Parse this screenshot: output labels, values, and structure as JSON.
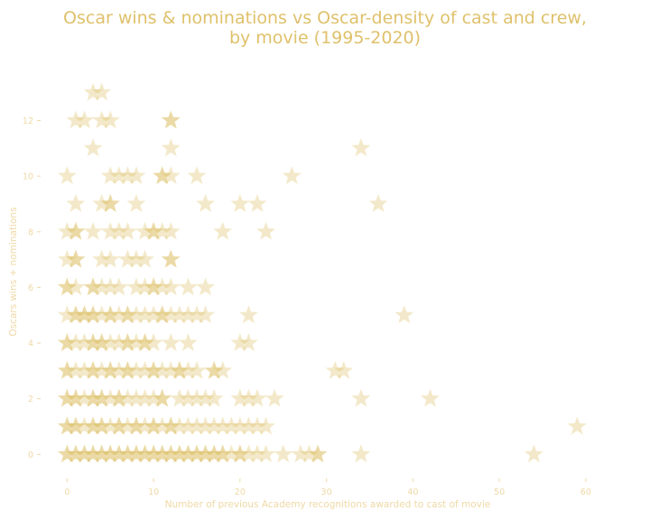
{
  "chart_data": {
    "type": "scatter",
    "title": "Oscar wins & nominations vs Oscar-density of cast and crew,",
    "subtitle": "by movie (1995-2020)",
    "xlabel": "Number of previous Academy recognitions awarded to cast of movie",
    "ylabel": "Oscars wins + nominations",
    "xlim": [
      -1.5,
      62
    ],
    "ylim": [
      -0.8,
      13.8
    ],
    "x_ticks": [
      "0",
      "10",
      "20",
      "30",
      "40",
      "50",
      "60"
    ],
    "y_ticks": [
      "0",
      "2",
      "4",
      "6",
      "8",
      "10",
      "12"
    ],
    "grid": false,
    "marker": "star",
    "marker_color": "#dcbd5e",
    "title_color": "#dfc16b",
    "label_color": "#efd9a6",
    "points": [
      [
        3,
        13
      ],
      [
        4,
        13
      ],
      [
        1,
        12
      ],
      [
        2,
        12
      ],
      [
        4,
        12
      ],
      [
        5,
        12
      ],
      [
        12,
        12
      ],
      [
        12,
        12
      ],
      [
        3,
        11
      ],
      [
        12,
        11
      ],
      [
        34,
        11
      ],
      [
        0,
        10
      ],
      [
        5,
        10
      ],
      [
        6,
        10
      ],
      [
        7,
        10
      ],
      [
        8,
        10
      ],
      [
        11,
        10
      ],
      [
        12,
        10
      ],
      [
        11,
        10
      ],
      [
        15,
        10
      ],
      [
        26,
        10
      ],
      [
        1,
        9
      ],
      [
        4,
        9
      ],
      [
        5,
        9
      ],
      [
        5,
        9
      ],
      [
        8,
        9
      ],
      [
        16,
        9
      ],
      [
        20,
        9
      ],
      [
        22,
        9
      ],
      [
        36,
        9
      ],
      [
        0,
        8
      ],
      [
        1,
        8
      ],
      [
        1,
        8
      ],
      [
        3,
        8
      ],
      [
        5,
        8
      ],
      [
        6,
        8
      ],
      [
        7,
        8
      ],
      [
        9,
        8
      ],
      [
        10,
        8
      ],
      [
        10,
        8
      ],
      [
        11,
        8
      ],
      [
        12,
        8
      ],
      [
        18,
        8
      ],
      [
        23,
        8
      ],
      [
        0,
        7
      ],
      [
        1,
        7
      ],
      [
        1,
        7
      ],
      [
        4,
        7
      ],
      [
        5,
        7
      ],
      [
        7,
        7
      ],
      [
        8,
        7
      ],
      [
        9,
        7
      ],
      [
        12,
        7
      ],
      [
        12,
        7
      ],
      [
        0,
        6
      ],
      [
        0,
        6
      ],
      [
        1,
        6
      ],
      [
        3,
        6
      ],
      [
        3,
        6
      ],
      [
        4,
        6
      ],
      [
        5,
        6
      ],
      [
        6,
        6
      ],
      [
        8,
        6
      ],
      [
        9,
        6
      ],
      [
        10,
        6
      ],
      [
        10,
        6
      ],
      [
        11,
        6
      ],
      [
        12,
        6
      ],
      [
        14,
        6
      ],
      [
        16,
        6
      ],
      [
        0,
        5
      ],
      [
        1,
        5
      ],
      [
        1,
        5
      ],
      [
        2,
        5
      ],
      [
        2,
        5
      ],
      [
        3,
        5
      ],
      [
        3,
        5
      ],
      [
        4,
        5
      ],
      [
        5,
        5
      ],
      [
        5,
        5
      ],
      [
        6,
        5
      ],
      [
        7,
        5
      ],
      [
        7,
        5
      ],
      [
        8,
        5
      ],
      [
        9,
        5
      ],
      [
        10,
        5
      ],
      [
        11,
        5
      ],
      [
        11,
        5
      ],
      [
        12,
        5
      ],
      [
        13,
        5
      ],
      [
        14,
        5
      ],
      [
        15,
        5
      ],
      [
        16,
        5
      ],
      [
        21,
        5
      ],
      [
        39,
        5
      ],
      [
        0,
        4
      ],
      [
        0,
        4
      ],
      [
        1,
        4
      ],
      [
        2,
        4
      ],
      [
        3,
        4
      ],
      [
        3,
        4
      ],
      [
        4,
        4
      ],
      [
        4,
        4
      ],
      [
        5,
        4
      ],
      [
        6,
        4
      ],
      [
        7,
        4
      ],
      [
        7,
        4
      ],
      [
        8,
        4
      ],
      [
        9,
        4
      ],
      [
        9,
        4
      ],
      [
        10,
        4
      ],
      [
        12,
        4
      ],
      [
        14,
        4
      ],
      [
        20,
        4
      ],
      [
        21,
        4
      ],
      [
        0,
        3
      ],
      [
        0,
        3
      ],
      [
        1,
        3
      ],
      [
        2,
        3
      ],
      [
        3,
        3
      ],
      [
        3,
        3
      ],
      [
        4,
        3
      ],
      [
        5,
        3
      ],
      [
        5,
        3
      ],
      [
        6,
        3
      ],
      [
        7,
        3
      ],
      [
        7,
        3
      ],
      [
        8,
        3
      ],
      [
        9,
        3
      ],
      [
        10,
        3
      ],
      [
        10,
        3
      ],
      [
        11,
        3
      ],
      [
        12,
        3
      ],
      [
        13,
        3
      ],
      [
        13,
        3
      ],
      [
        14,
        3
      ],
      [
        15,
        3
      ],
      [
        17,
        3
      ],
      [
        17,
        3
      ],
      [
        18,
        3
      ],
      [
        31,
        3
      ],
      [
        32,
        3
      ],
      [
        0,
        2
      ],
      [
        0,
        2
      ],
      [
        1,
        2
      ],
      [
        1,
        2
      ],
      [
        2,
        2
      ],
      [
        3,
        2
      ],
      [
        3,
        2
      ],
      [
        4,
        2
      ],
      [
        4,
        2
      ],
      [
        5,
        2
      ],
      [
        6,
        2
      ],
      [
        6,
        2
      ],
      [
        7,
        2
      ],
      [
        8,
        2
      ],
      [
        9,
        2
      ],
      [
        10,
        2
      ],
      [
        11,
        2
      ],
      [
        11,
        2
      ],
      [
        13,
        2
      ],
      [
        14,
        2
      ],
      [
        15,
        2
      ],
      [
        16,
        2
      ],
      [
        17,
        2
      ],
      [
        20,
        2
      ],
      [
        21,
        2
      ],
      [
        22,
        2
      ],
      [
        24,
        2
      ],
      [
        34,
        2
      ],
      [
        42,
        2
      ],
      [
        0,
        1
      ],
      [
        0,
        1
      ],
      [
        1,
        1
      ],
      [
        1,
        1
      ],
      [
        2,
        1
      ],
      [
        3,
        1
      ],
      [
        3,
        1
      ],
      [
        4,
        1
      ],
      [
        4,
        1
      ],
      [
        5,
        1
      ],
      [
        6,
        1
      ],
      [
        6,
        1
      ],
      [
        7,
        1
      ],
      [
        8,
        1
      ],
      [
        8,
        1
      ],
      [
        9,
        1
      ],
      [
        10,
        1
      ],
      [
        10,
        1
      ],
      [
        11,
        1
      ],
      [
        12,
        1
      ],
      [
        12,
        1
      ],
      [
        13,
        1
      ],
      [
        14,
        1
      ],
      [
        15,
        1
      ],
      [
        16,
        1
      ],
      [
        17,
        1
      ],
      [
        18,
        1
      ],
      [
        19,
        1
      ],
      [
        20,
        1
      ],
      [
        21,
        1
      ],
      [
        22,
        1
      ],
      [
        23,
        1
      ],
      [
        59,
        1
      ],
      [
        0,
        0
      ],
      [
        0,
        0
      ],
      [
        1,
        0
      ],
      [
        1,
        0
      ],
      [
        2,
        0
      ],
      [
        2,
        0
      ],
      [
        3,
        0
      ],
      [
        3,
        0
      ],
      [
        4,
        0
      ],
      [
        4,
        0
      ],
      [
        5,
        0
      ],
      [
        5,
        0
      ],
      [
        6,
        0
      ],
      [
        6,
        0
      ],
      [
        7,
        0
      ],
      [
        7,
        0
      ],
      [
        8,
        0
      ],
      [
        8,
        0
      ],
      [
        9,
        0
      ],
      [
        9,
        0
      ],
      [
        10,
        0
      ],
      [
        10,
        0
      ],
      [
        11,
        0
      ],
      [
        11,
        0
      ],
      [
        12,
        0
      ],
      [
        12,
        0
      ],
      [
        13,
        0
      ],
      [
        13,
        0
      ],
      [
        14,
        0
      ],
      [
        14,
        0
      ],
      [
        15,
        0
      ],
      [
        15,
        0
      ],
      [
        16,
        0
      ],
      [
        16,
        0
      ],
      [
        17,
        0
      ],
      [
        17,
        0
      ],
      [
        18,
        0
      ],
      [
        18,
        0
      ],
      [
        19,
        0
      ],
      [
        20,
        0
      ],
      [
        20,
        0
      ],
      [
        21,
        0
      ],
      [
        22,
        0
      ],
      [
        23,
        0
      ],
      [
        25,
        0
      ],
      [
        27,
        0
      ],
      [
        28,
        0
      ],
      [
        29,
        0
      ],
      [
        29,
        0
      ],
      [
        34,
        0
      ],
      [
        54,
        0
      ]
    ]
  }
}
